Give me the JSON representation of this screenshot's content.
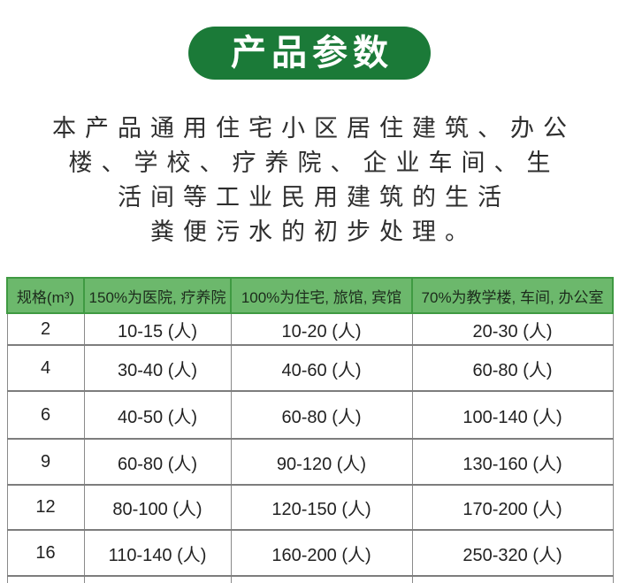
{
  "banner": {
    "title": "产品参数"
  },
  "intro": {
    "lines": [
      "本产品通用住宅小区居住建筑、办公",
      "楼、学校、疗养院、企业车间、生",
      "活间等工业民用建筑的生活",
      "粪便污水的初步处理。"
    ]
  },
  "table": {
    "headers": [
      "规格(m³)",
      "150%为医院, 疗养院",
      "100%为住宅, 旅馆, 宾馆",
      "70%为教学楼, 车间, 办公室"
    ],
    "rows": [
      [
        "2",
        "10-15 (人)",
        "10-20 (人)",
        "20-30 (人)"
      ],
      [
        "4",
        "30-40 (人)",
        "40-60 (人)",
        "60-80 (人)"
      ],
      [
        "6",
        "40-50 (人)",
        "60-80 (人)",
        "100-140 (人)"
      ],
      [
        "9",
        "60-80 (人)",
        "90-120 (人)",
        "130-160 (人)"
      ],
      [
        "12",
        "80-100 (人)",
        "120-150 (人)",
        "170-200 (人)"
      ],
      [
        "16",
        "110-140 (人)",
        "160-200 (人)",
        "250-320 (人)"
      ]
    ]
  },
  "colors": {
    "banner_green": "#1b7a38",
    "header_green": "#6cb86c",
    "header_border_green": "#3f9a42",
    "table_line_gray": "#7d7d7d",
    "text_dark": "#2e2e2e"
  }
}
